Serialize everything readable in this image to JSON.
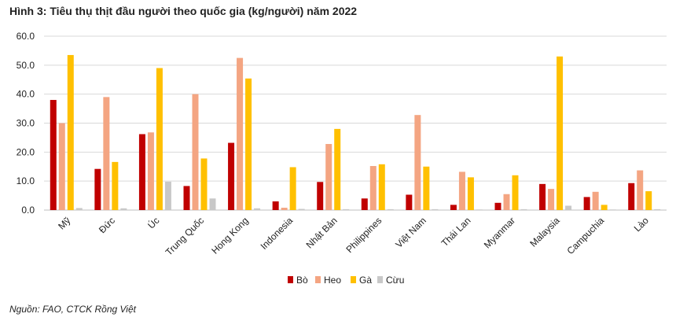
{
  "title": "Hình 3: Tiêu thụ thịt đầu người theo quốc gia (kg/người) năm 2022",
  "source": "Nguồn: FAO, CTCK Rồng Việt",
  "colors": {
    "bo": "#c00000",
    "heo": "#f4a582",
    "ga": "#ffc000",
    "cuu": "#c8c8c8"
  },
  "chart_data": {
    "type": "bar",
    "title": "Hình 3: Tiêu thụ thịt đầu người theo quốc gia (kg/người) năm 2022",
    "xlabel": "",
    "ylabel": "",
    "ylim": [
      0,
      60
    ],
    "yticks": [
      "0.0",
      "10.0",
      "20.0",
      "30.0",
      "40.0",
      "50.0",
      "60.0"
    ],
    "grid": true,
    "legend_position": "bottom",
    "categories": [
      "Mỹ",
      "Đức",
      "Úc",
      "Trung Quốc",
      "Hong Kong",
      "Indonesia",
      "Nhật Bản",
      "Philippines",
      "Việt Nam",
      "Thái Lan",
      "Myanmar",
      "Malaysia",
      "Campuchia",
      "Lào"
    ],
    "series": [
      {
        "name": "Bò",
        "values": [
          38.0,
          14.2,
          26.2,
          8.3,
          23.2,
          3.0,
          9.7,
          4.0,
          5.3,
          1.8,
          2.5,
          9.0,
          4.5,
          9.3
        ]
      },
      {
        "name": "Heo",
        "values": [
          30.0,
          39.0,
          26.8,
          40.0,
          52.5,
          0.8,
          22.8,
          15.2,
          32.8,
          13.2,
          5.5,
          7.3,
          6.3,
          13.7
        ]
      },
      {
        "name": "Gà",
        "values": [
          53.5,
          16.6,
          49.0,
          17.8,
          45.4,
          14.8,
          28.0,
          15.8,
          15.0,
          11.3,
          12.0,
          53.0,
          1.8,
          6.5
        ]
      },
      {
        "name": "Cừu",
        "values": [
          0.7,
          0.6,
          9.8,
          4.0,
          0.6,
          0.4,
          0.3,
          0.3,
          0.3,
          0.2,
          0.3,
          1.5,
          0.2,
          0.3
        ]
      }
    ]
  }
}
